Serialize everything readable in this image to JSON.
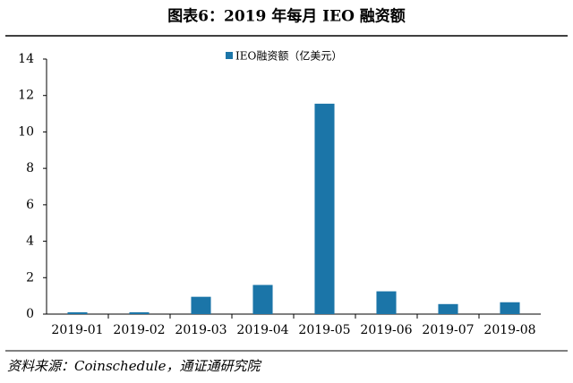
{
  "chart_data": {
    "type": "bar",
    "title": "图表6：2019 年每月 IEO 融资额",
    "categories": [
      "2019-01",
      "2019-02",
      "2019-03",
      "2019-04",
      "2019-05",
      "2019-06",
      "2019-07",
      "2019-08"
    ],
    "series": [
      {
        "name": "IEO融资额（亿美元）",
        "color": "#1b75a8",
        "values": [
          0.1,
          0.1,
          0.95,
          1.6,
          11.55,
          1.25,
          0.55,
          0.65
        ]
      }
    ],
    "ylim": [
      0,
      14
    ],
    "yticks": [
      0,
      2,
      4,
      6,
      8,
      10,
      12,
      14
    ],
    "grid": false,
    "source": "资料来源：Coinschedule，通证通研究院"
  }
}
